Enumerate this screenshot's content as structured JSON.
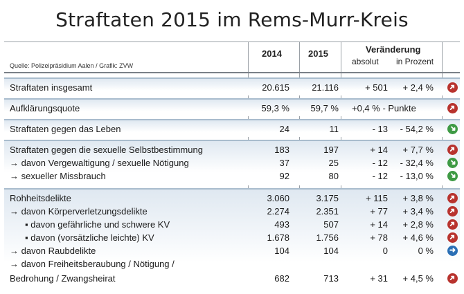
{
  "title": "Straftaten 2015 im Rems-Murr-Kreis",
  "source": "Quelle: Polizeipräsidium Aalen / Grafik: ZVW",
  "header": {
    "year1": "2014",
    "year2": "2015",
    "change": "Veränderung",
    "absolut": "absolut",
    "prozent": "in Prozent"
  },
  "rows": {
    "r1": {
      "label": "Straftaten insgesamt",
      "v14": "20.615",
      "v15": "21.116",
      "abs": "+ 501",
      "pct": "+ 2,4 %",
      "trend": "up"
    },
    "r2": {
      "label": "Aufklärungsquote",
      "v14": "59,3 %",
      "v15": "59,7 %",
      "merged": "+0,4 % - Punkte",
      "trend": "up"
    },
    "r3": {
      "label": "Straftaten gegen das Leben",
      "v14": "24",
      "v15": "11",
      "abs": "- 13",
      "pct": "- 54,2 %",
      "trend": "down"
    },
    "r4": {
      "label": "Straftaten gegen die sexuelle Selbstbestimmung",
      "v14": "183",
      "v15": "197",
      "abs": "+ 14",
      "pct": "+ 7,7 %",
      "trend": "up"
    },
    "r5": {
      "label": "→ davon Vergewaltigung / sexuelle Nötigung",
      "v14": "37",
      "v15": "25",
      "abs": "- 12",
      "pct": "- 32,4 %",
      "trend": "down"
    },
    "r6": {
      "label": "→ sexueller Missbrauch",
      "v14": "92",
      "v15": "80",
      "abs": "- 12",
      "pct": "- 13,0 %",
      "trend": "down"
    },
    "r7": {
      "label": "Rohheitsdelikte",
      "v14": "3.060",
      "v15": "3.175",
      "abs": "+ 115",
      "pct": "+ 3,8 %",
      "trend": "up"
    },
    "r8": {
      "label": "→ davon Körperverletzungsdelikte",
      "v14": "2.274",
      "v15": "2.351",
      "abs": "+ 77",
      "pct": "+ 3,4 %",
      "trend": "up"
    },
    "r9": {
      "label": "▪ davon gefährliche und schwere KV",
      "v14": "493",
      "v15": "507",
      "abs": "+ 14",
      "pct": "+ 2,8 %",
      "trend": "up"
    },
    "r10": {
      "label": "▪ davon (vorsätzliche leichte) KV",
      "v14": "1.678",
      "v15": "1.756",
      "abs": "+ 78",
      "pct": "+ 4,6 %",
      "trend": "up"
    },
    "r11": {
      "label": "→ davon Raubdelikte",
      "v14": "104",
      "v15": "104",
      "abs": "0",
      "pct": "0 %",
      "trend": "same"
    },
    "r12a": {
      "label": "→ davon Freiheitsberaubung / Nötigung /"
    },
    "r12": {
      "label": "Bedrohung / Zwangsheirat",
      "v14": "682",
      "v15": "713",
      "abs": "+ 31",
      "pct": "+ 4,5 %",
      "trend": "up"
    }
  },
  "colors": {
    "up": "#b8332e",
    "down": "#3e9a44",
    "same": "#2a6fb5"
  }
}
